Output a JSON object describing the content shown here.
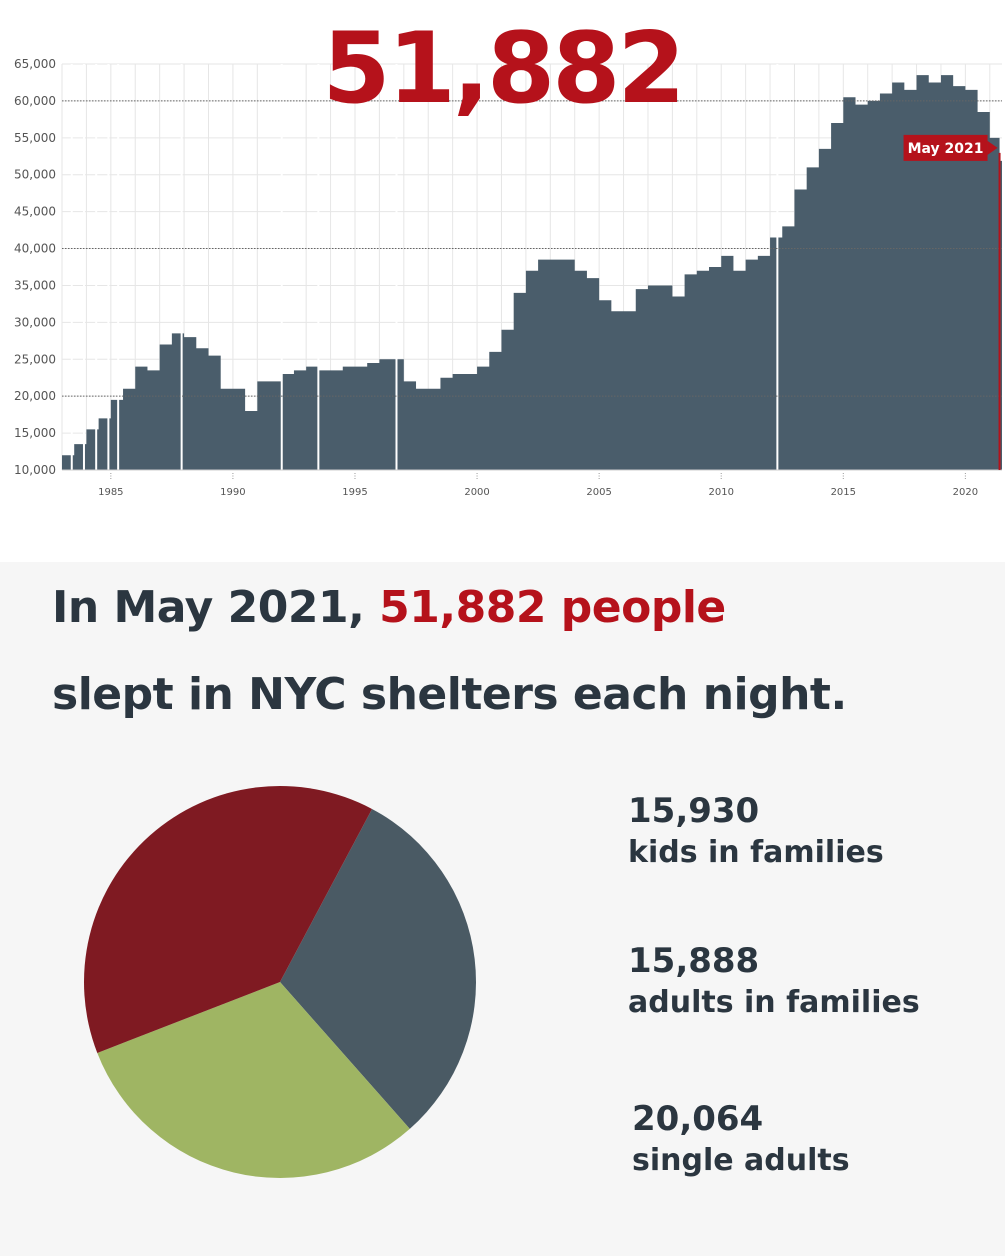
{
  "headline_number": "51,882",
  "headline": {
    "part1": "In May 2021, ",
    "highlight": "51,882 people",
    "line2": "slept in NYC shelters each night."
  },
  "colors": {
    "area": "#4a5d6b",
    "accent": "#b5121b",
    "pie_red": "#7f1a22",
    "pie_slate": "#4a5a64",
    "pie_green": "#9fb563",
    "text": "#2b3640",
    "axis_text": "#555555",
    "grid": "#e6e6e6",
    "bottom_bg": "#f6f6f6"
  },
  "chart_data": [
    {
      "type": "area",
      "title": "",
      "xlabel": "",
      "ylabel": "",
      "xlim": [
        1983,
        2021.5
      ],
      "ylim": [
        10000,
        65000
      ],
      "y_ticks": [
        10000,
        15000,
        20000,
        25000,
        30000,
        35000,
        40000,
        45000,
        50000,
        55000,
        60000,
        65000
      ],
      "y_tick_labels": [
        "10,000",
        "15,000",
        "20,000",
        "25,000",
        "30,000",
        "35,000",
        "40,000",
        "45,000",
        "50,000",
        "55,000",
        "60,000",
        "65,000"
      ],
      "x_ticks": [
        1985,
        1990,
        1995,
        2000,
        2005,
        2010,
        2015,
        2020
      ],
      "x_tick_labels": [
        "1985",
        "1990",
        "1995",
        "2000",
        "2005",
        "2010",
        "2015",
        "2020"
      ],
      "reference_lines": [
        20000,
        40000,
        60000
      ],
      "grid": true,
      "annotation": {
        "label": "May 2021",
        "x": 2021.4,
        "y": 51882
      },
      "series": [
        {
          "x": [
            1983.0,
            1983.5,
            1984.0,
            1984.5,
            1985.0,
            1985.5,
            1986.0,
            1986.5,
            1987.0,
            1987.5,
            1988.0,
            1988.5,
            1989.0,
            1989.5,
            1990.0,
            1990.5,
            1991.0,
            1991.5,
            1992.0,
            1992.5,
            1993.0,
            1993.5,
            1994.0,
            1994.5,
            1995.0,
            1995.5,
            1996.0,
            1996.5,
            1997.0,
            1997.5,
            1998.0,
            1998.5,
            1999.0,
            1999.5,
            2000.0,
            2000.5,
            2001.0,
            2001.5,
            2002.0,
            2002.5,
            2003.0,
            2003.5,
            2004.0,
            2004.5,
            2005.0,
            2005.5,
            2006.0,
            2006.5,
            2007.0,
            2007.5,
            2008.0,
            2008.5,
            2009.0,
            2009.5,
            2010.0,
            2010.5,
            2011.0,
            2011.5,
            2012.0,
            2012.5,
            2013.0,
            2013.5,
            2014.0,
            2014.5,
            2015.0,
            2015.5,
            2016.0,
            2016.5,
            2017.0,
            2017.5,
            2018.0,
            2018.5,
            2019.0,
            2019.5,
            2020.0,
            2020.5,
            2021.0,
            2021.4
          ],
          "y": [
            12000,
            13500,
            15500,
            17000,
            19500,
            21000,
            24000,
            23500,
            27000,
            28500,
            28000,
            26500,
            25500,
            21000,
            21000,
            18000,
            22000,
            22000,
            23000,
            23500,
            24000,
            23500,
            23500,
            24000,
            24000,
            24500,
            25000,
            25000,
            22000,
            21000,
            21000,
            22500,
            23000,
            23000,
            24000,
            26000,
            29000,
            34000,
            37000,
            38500,
            38500,
            38500,
            37000,
            36000,
            33000,
            31500,
            31500,
            34500,
            35000,
            35000,
            33500,
            36500,
            37000,
            37500,
            39000,
            37000,
            38500,
            39000,
            41500,
            43000,
            48000,
            51000,
            53500,
            57000,
            60500,
            59500,
            60000,
            61000,
            62500,
            61500,
            63500,
            62500,
            63500,
            62000,
            61500,
            58500,
            55000,
            51882
          ]
        }
      ]
    },
    {
      "type": "pie",
      "title": "",
      "labels": [
        "kids in families",
        "adults in families",
        "single adults"
      ],
      "display_values": [
        "15,930",
        "15,888",
        "20,064"
      ],
      "values": [
        15930,
        15888,
        20064
      ],
      "colors": [
        "#4a5a64",
        "#9fb563",
        "#7f1a22"
      ]
    }
  ]
}
